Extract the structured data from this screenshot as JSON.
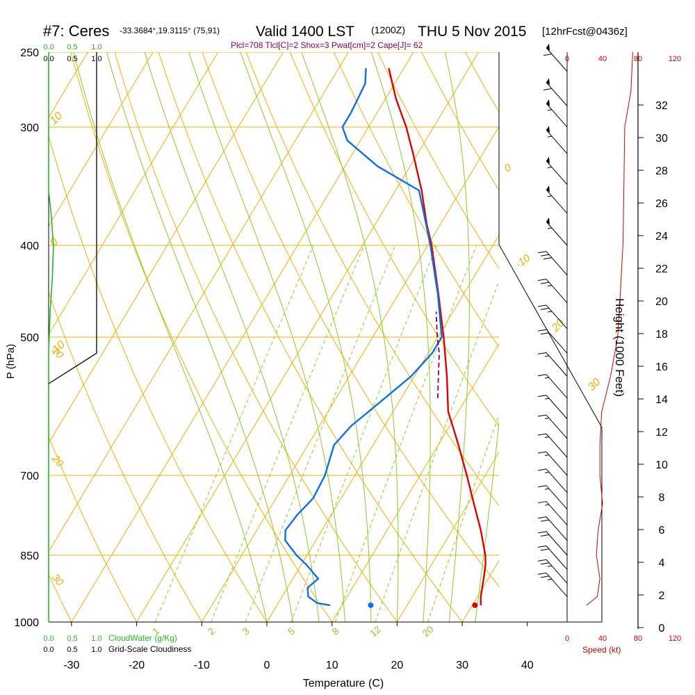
{
  "header": {
    "station": "#7: Ceres",
    "coords": "-33.3684°,19.3115° (75,91)",
    "valid": "Valid 1400 LST",
    "zulu": "(1200Z)",
    "date": "THU 5 Nov 2015",
    "forecast": "[12hrFcst@0436z]",
    "indices": "Plcl=708 Tlcl[C]=2 Shox=3 Pwat[cm]=2 Cape[J]= 62"
  },
  "labels": {
    "pressure_axis": "P (hPa)",
    "temperature_axis": "Temperature (C)",
    "height_axis": "Height (1000 Feet)",
    "speed_axis": "Speed (kt)",
    "cloud_water": "CloudWater (g/Kg)",
    "cloudiness": "Grid-Scale Cloudiness"
  },
  "colors": {
    "temperature": "#e00000",
    "dewpoint": "#0a6ef0",
    "parcel": "#880055",
    "isobar": "#f0b000",
    "isotherm": "#f0b000",
    "dry_adiabat": "#f0b000",
    "moist_adiabat": "#88cc22",
    "mixing_ratio": "#88cc22",
    "cloud_water": "#22bb22",
    "wind_speed": "#cc0000",
    "indices": "#880055"
  },
  "chart_data": {
    "type": "skew-t",
    "pressure_axis": {
      "scale": "log",
      "range": [
        1000,
        250
      ],
      "ticks": [
        1000,
        850,
        700,
        500,
        400,
        300,
        250
      ]
    },
    "temperature_axis": {
      "ticks": [
        -30,
        -20,
        -10,
        0,
        10,
        20,
        30,
        40
      ]
    },
    "height_axis": {
      "unit": "1000 ft",
      "ticks": [
        0,
        2,
        4,
        6,
        8,
        10,
        12,
        14,
        16,
        18,
        20,
        22,
        24,
        26,
        28,
        30,
        32
      ]
    },
    "speed_axis": {
      "unit": "kt",
      "ticks": [
        0,
        40,
        80,
        120
      ]
    },
    "cloud_axis": {
      "ticks": [
        "0.0",
        "0.5",
        "1.0"
      ]
    },
    "dry_adiabat_labels": [
      "-10",
      "0",
      "10",
      "20",
      "30"
    ],
    "mixing_ratio_labels": [
      "1",
      "2",
      "3",
      "5",
      "8",
      "12",
      "20"
    ],
    "moist_adiabat_labels": [
      "30",
      "20",
      "10",
      "0",
      "-10"
    ],
    "temperature_profile": [
      {
        "p": 960,
        "t": 31.3
      },
      {
        "p": 940,
        "t": 30.5
      },
      {
        "p": 900,
        "t": 29.3
      },
      {
        "p": 870,
        "t": 28.3
      },
      {
        "p": 850,
        "t": 27.4
      },
      {
        "p": 800,
        "t": 24.4
      },
      {
        "p": 750,
        "t": 20.9
      },
      {
        "p": 700,
        "t": 17.2
      },
      {
        "p": 650,
        "t": 13.1
      },
      {
        "p": 620,
        "t": 10.4
      },
      {
        "p": 600,
        "t": 8.5
      },
      {
        "p": 550,
        "t": 5.0
      },
      {
        "p": 500,
        "t": 0.9
      },
      {
        "p": 450,
        "t": -3.9
      },
      {
        "p": 400,
        "t": -9.4
      },
      {
        "p": 380,
        "t": -12.1
      },
      {
        "p": 350,
        "t": -16.0
      },
      {
        "p": 320,
        "t": -20.7
      },
      {
        "p": 300,
        "t": -24.2
      },
      {
        "p": 280,
        "t": -28.4
      },
      {
        "p": 260,
        "t": -32.3
      }
    ],
    "dewpoint_profile": [
      {
        "p": 960,
        "t": 8.2
      },
      {
        "p": 955,
        "t": 6.0
      },
      {
        "p": 940,
        "t": 4.0
      },
      {
        "p": 920,
        "t": 3.1
      },
      {
        "p": 900,
        "t": 3.9
      },
      {
        "p": 870,
        "t": 0.8
      },
      {
        "p": 850,
        "t": -1.6
      },
      {
        "p": 820,
        "t": -4.7
      },
      {
        "p": 800,
        "t": -5.6
      },
      {
        "p": 770,
        "t": -5.2
      },
      {
        "p": 740,
        "t": -4.3
      },
      {
        "p": 700,
        "t": -4.6
      },
      {
        "p": 650,
        "t": -6.0
      },
      {
        "p": 620,
        "t": -5.1
      },
      {
        "p": 600,
        "t": -3.8
      },
      {
        "p": 550,
        "t": -0.5
      },
      {
        "p": 520,
        "t": 0.6
      },
      {
        "p": 500,
        "t": 0.6
      },
      {
        "p": 450,
        "t": -4.0
      },
      {
        "p": 400,
        "t": -9.6
      },
      {
        "p": 380,
        "t": -12.2
      },
      {
        "p": 350,
        "t": -16.4
      },
      {
        "p": 330,
        "t": -25.0
      },
      {
        "p": 310,
        "t": -32.0
      },
      {
        "p": 300,
        "t": -34.0
      },
      {
        "p": 290,
        "t": -34.0
      },
      {
        "p": 270,
        "t": -34.5
      },
      {
        "p": 260,
        "t": -35.8
      }
    ],
    "parcel_profile": [
      {
        "p": 580,
        "t": 5.6
      },
      {
        "p": 520,
        "t": 1.7
      },
      {
        "p": 500,
        "t": -0.1
      },
      {
        "p": 470,
        "t": -2.6
      }
    ],
    "surface_points": {
      "temperature": {
        "p": 960,
        "t": 30.4
      },
      "dewpoint": {
        "p": 960,
        "t": 14.4
      }
    },
    "cloud_water": [
      {
        "p": 250,
        "v": 0.0
      },
      {
        "p": 350,
        "v": 0.0
      },
      {
        "p": 370,
        "v": 0.05
      },
      {
        "p": 400,
        "v": 0.1
      },
      {
        "p": 430,
        "v": 0.08
      },
      {
        "p": 470,
        "v": 0.03
      },
      {
        "p": 520,
        "v": 0.0
      },
      {
        "p": 1000,
        "v": 0.0
      }
    ],
    "cloudiness": [
      {
        "p": 250,
        "v": 1.0
      },
      {
        "p": 520,
        "v": 1.0
      },
      {
        "p": 560,
        "v": 0.0
      }
    ],
    "wind_speed_profile": [
      {
        "p": 250,
        "kt": 74
      },
      {
        "p": 275,
        "kt": 72
      },
      {
        "p": 300,
        "kt": 65
      },
      {
        "p": 350,
        "kt": 64
      },
      {
        "p": 400,
        "kt": 63
      },
      {
        "p": 450,
        "kt": 60
      },
      {
        "p": 500,
        "kt": 57
      },
      {
        "p": 550,
        "kt": 49
      },
      {
        "p": 600,
        "kt": 39
      },
      {
        "p": 650,
        "kt": 37
      },
      {
        "p": 700,
        "kt": 37
      },
      {
        "p": 750,
        "kt": 40
      },
      {
        "p": 800,
        "kt": 35
      },
      {
        "p": 850,
        "kt": 33
      },
      {
        "p": 900,
        "kt": 37
      },
      {
        "p": 940,
        "kt": 34
      },
      {
        "p": 960,
        "kt": 22
      }
    ],
    "wind_barbs": [
      {
        "p": 262,
        "kt": 60
      },
      {
        "p": 285,
        "kt": 60
      },
      {
        "p": 300,
        "kt": 55
      },
      {
        "p": 320,
        "kt": 55
      },
      {
        "p": 345,
        "kt": 55
      },
      {
        "p": 370,
        "kt": 55
      },
      {
        "p": 400,
        "kt": 55
      },
      {
        "p": 430,
        "kt": 30
      },
      {
        "p": 460,
        "kt": 25
      },
      {
        "p": 490,
        "kt": 25
      },
      {
        "p": 520,
        "kt": 20
      },
      {
        "p": 550,
        "kt": 15
      },
      {
        "p": 580,
        "kt": 15
      },
      {
        "p": 610,
        "kt": 15
      },
      {
        "p": 640,
        "kt": 15
      },
      {
        "p": 670,
        "kt": 15
      },
      {
        "p": 700,
        "kt": 15
      },
      {
        "p": 730,
        "kt": 15
      },
      {
        "p": 760,
        "kt": 15
      },
      {
        "p": 790,
        "kt": 15
      },
      {
        "p": 820,
        "kt": 20
      },
      {
        "p": 850,
        "kt": 20
      },
      {
        "p": 880,
        "kt": 20
      },
      {
        "p": 910,
        "kt": 25
      },
      {
        "p": 940,
        "kt": 25
      }
    ]
  }
}
